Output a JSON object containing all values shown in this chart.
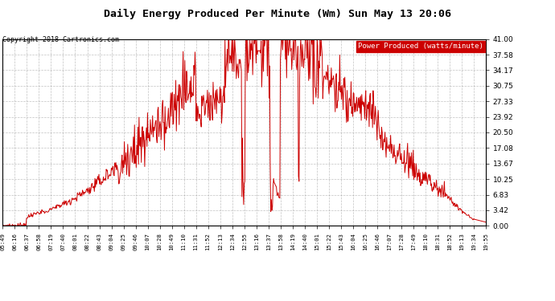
{
  "title": "Daily Energy Produced Per Minute (Wm) Sun May 13 20:06",
  "copyright": "Copyright 2018 Cartronics.com",
  "legend_label": "Power Produced (watts/minute)",
  "legend_bg": "#cc0000",
  "legend_text_color": "#ffffff",
  "line_color": "#cc0000",
  "bg_color": "#ffffff",
  "grid_color": "#999999",
  "title_color": "#000000",
  "copyright_color": "#000000",
  "ymin": 0.0,
  "ymax": 41.0,
  "yticks": [
    0.0,
    3.42,
    6.83,
    10.25,
    13.67,
    17.08,
    20.5,
    23.92,
    27.33,
    30.75,
    34.17,
    37.58,
    41.0
  ],
  "xtick_labels": [
    "05:49",
    "06:16",
    "06:37",
    "06:58",
    "07:19",
    "07:40",
    "08:01",
    "08:22",
    "08:43",
    "09:04",
    "09:25",
    "09:46",
    "10:07",
    "10:28",
    "10:49",
    "11:10",
    "11:31",
    "11:52",
    "12:13",
    "12:34",
    "12:55",
    "13:16",
    "13:37",
    "13:58",
    "14:19",
    "14:40",
    "15:01",
    "15:22",
    "15:43",
    "16:04",
    "16:25",
    "16:46",
    "17:07",
    "17:28",
    "17:49",
    "18:10",
    "18:31",
    "18:52",
    "19:13",
    "19:34",
    "19:55"
  ],
  "figsize": [
    6.9,
    3.75
  ],
  "dpi": 100
}
